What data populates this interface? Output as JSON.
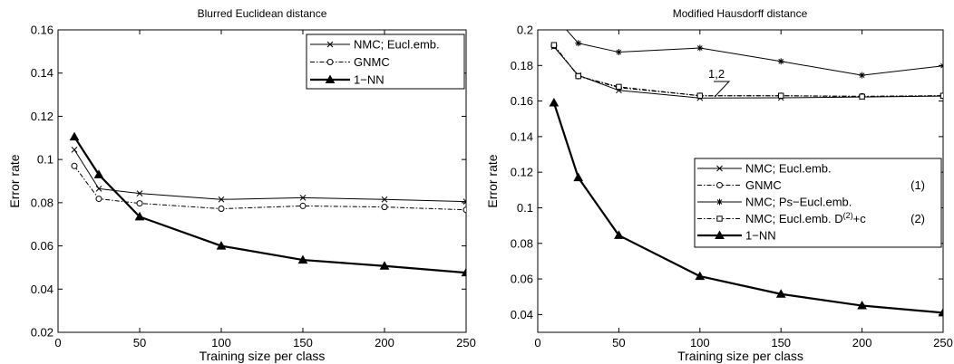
{
  "chart_data": [
    {
      "type": "line",
      "title": "Blurred Euclidean distance",
      "xlabel": "Training size per class",
      "ylabel": "Error rate",
      "xlim": [
        0,
        250
      ],
      "ylim": [
        0.02,
        0.16
      ],
      "x_ticks": [
        "0",
        "50",
        "100",
        "150",
        "200",
        "250"
      ],
      "y_ticks": [
        "0.02",
        "0.04",
        "0.06",
        "0.08",
        "0.1",
        "0.12",
        "0.14",
        "0.16"
      ],
      "legend_position": "top-right",
      "grid": false,
      "series": [
        {
          "name": "NMC; Eucl.emb.",
          "marker": "x",
          "style": "solid",
          "width": 1,
          "x": [
            10,
            25,
            50,
            100,
            150,
            200,
            250
          ],
          "y": [
            0.1045,
            0.0865,
            0.0843,
            0.0815,
            0.0823,
            0.0815,
            0.0805
          ]
        },
        {
          "name": "GNMC",
          "marker": "o",
          "style": "dashdot",
          "width": 1,
          "x": [
            10,
            25,
            50,
            100,
            150,
            200,
            250
          ],
          "y": [
            0.097,
            0.0818,
            0.0797,
            0.0772,
            0.0785,
            0.078,
            0.0767
          ]
        },
        {
          "name": "1−NN",
          "marker": "triangle",
          "style": "solid",
          "width": 2.2,
          "x": [
            10,
            25,
            50,
            100,
            150,
            200,
            250
          ],
          "y": [
            0.1105,
            0.093,
            0.0735,
            0.06,
            0.0535,
            0.0507,
            0.0476
          ]
        }
      ]
    },
    {
      "type": "line",
      "title": "Modified Hausdorff distance",
      "xlabel": "Training size per class",
      "ylabel": "Error rate",
      "xlim": [
        0,
        250
      ],
      "ylim": [
        0.03,
        0.2
      ],
      "x_ticks": [
        "0",
        "50",
        "100",
        "150",
        "200",
        "250"
      ],
      "y_ticks": [
        "0.04",
        "0.06",
        "0.08",
        "0.1",
        "0.12",
        "0.14",
        "0.16",
        "0.18",
        "0.2"
      ],
      "legend_position": "center-right",
      "grid": false,
      "annotation": "1,2",
      "series": [
        {
          "name": "NMC; Eucl.emb.",
          "marker": "x",
          "style": "solid",
          "width": 1,
          "x": [
            10,
            25,
            50,
            100,
            150,
            200,
            250
          ],
          "y": [
            0.1905,
            0.1745,
            0.166,
            0.1617,
            0.1618,
            0.1623,
            0.1628
          ]
        },
        {
          "name": "GNMC",
          "note": "(1)",
          "marker": "o",
          "style": "dashdot",
          "width": 1,
          "x": [
            10,
            25,
            50,
            100,
            150,
            200,
            250
          ],
          "y": [
            0.191,
            0.174,
            0.1675,
            0.163,
            0.163,
            0.1627,
            0.163
          ]
        },
        {
          "name": "NMC; Ps−Eucl.emb.",
          "marker": "star",
          "style": "solid",
          "width": 1,
          "x": [
            10,
            25,
            50,
            100,
            150,
            200,
            250
          ],
          "y": [
            0.208,
            0.1925,
            0.1875,
            0.1898,
            0.1823,
            0.1745,
            0.1798
          ]
        },
        {
          "name": "NMC; Eucl.emb. D",
          "name_sup": "(2)",
          "name_suffix": "+c",
          "note": "(2)",
          "marker": "square",
          "style": "dashdot",
          "width": 1,
          "x": [
            10,
            25,
            50,
            100,
            150,
            200,
            250
          ],
          "y": [
            0.1915,
            0.174,
            0.168,
            0.163,
            0.163,
            0.1625,
            0.163
          ]
        },
        {
          "name": "1−NN",
          "marker": "triangle",
          "style": "solid",
          "width": 2.2,
          "x": [
            10,
            25,
            50,
            100,
            150,
            200,
            250
          ],
          "y": [
            0.159,
            0.117,
            0.0845,
            0.0615,
            0.0515,
            0.045,
            0.041
          ]
        }
      ]
    }
  ]
}
